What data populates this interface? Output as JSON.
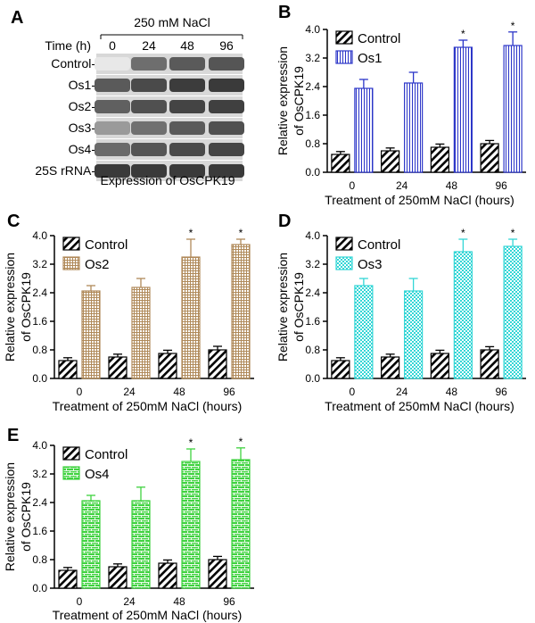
{
  "blot": {
    "letter": "A",
    "treatment": "250 mM NaCl",
    "time_label": "Time (h)",
    "times": [
      "0",
      "24",
      "48",
      "96"
    ],
    "rows": [
      {
        "label": "Control-",
        "shades": [
          "#e8e8e8",
          "#6e6e6e",
          "#5a5a5a",
          "#555555"
        ]
      },
      {
        "label": "Os1-",
        "shades": [
          "#5a5a5a",
          "#4a4a4a",
          "#3c3c3c",
          "#3a3a3a"
        ]
      },
      {
        "label": "Os2-",
        "shades": [
          "#606060",
          "#505050",
          "#444444",
          "#404040"
        ]
      },
      {
        "label": "Os3-",
        "shades": [
          "#9a9a9a",
          "#707070",
          "#5a5a5a",
          "#505050"
        ]
      },
      {
        "label": "Os4-",
        "shades": [
          "#6a6a6a",
          "#555555",
          "#4a4a4a",
          "#454545"
        ]
      },
      {
        "label": "25S rRNA-",
        "shades": [
          "#3a3a3a",
          "#3a3a3a",
          "#3a3a3a",
          "#3a3a3a"
        ]
      }
    ],
    "caption": "Expression of OsCPK19"
  },
  "chart_data": [
    {
      "type": "bar",
      "letter": "B",
      "categories": [
        "0",
        "24",
        "48",
        "96"
      ],
      "series": [
        {
          "name": "Control",
          "values": [
            0.5,
            0.6,
            0.7,
            0.8
          ],
          "errors": [
            0.08,
            0.08,
            0.09,
            0.09
          ],
          "pattern": "diagonal",
          "color": "#000000"
        },
        {
          "name": "Os1",
          "values": [
            2.35,
            2.5,
            3.5,
            3.55
          ],
          "errors": [
            0.25,
            0.3,
            0.2,
            0.38
          ],
          "pattern": "vlines",
          "color": "#2b35c8"
        }
      ],
      "significant": [
        false,
        false,
        true,
        true
      ],
      "star": "*",
      "xlabel": "Treatment of 250mM NaCl (hours)",
      "ylabel": [
        "Relative expression",
        "of OsCPK19"
      ],
      "ylim": [
        0,
        4.0
      ],
      "yticks": [
        "0.0",
        "0.8",
        "1.6",
        "2.4",
        "3.2",
        "4.0"
      ],
      "legend": "top-left"
    },
    {
      "type": "bar",
      "letter": "C",
      "categories": [
        "0",
        "24",
        "48",
        "96"
      ],
      "series": [
        {
          "name": "Control",
          "values": [
            0.5,
            0.6,
            0.7,
            0.8
          ],
          "errors": [
            0.08,
            0.08,
            0.09,
            0.1
          ],
          "pattern": "diagonal",
          "color": "#000000"
        },
        {
          "name": "Os2",
          "values": [
            2.45,
            2.55,
            3.4,
            3.75
          ],
          "errors": [
            0.15,
            0.25,
            0.5,
            0.15
          ],
          "pattern": "grid",
          "color": "#b08a5a"
        }
      ],
      "significant": [
        false,
        false,
        true,
        true
      ],
      "star": "*",
      "xlabel": "Treatment of 250mM NaCl (hours)",
      "ylabel": [
        "Relative expression",
        "of OsCPK19"
      ],
      "ylim": [
        0,
        4.0
      ],
      "yticks": [
        "0.0",
        "0.8",
        "1.6",
        "2.4",
        "3.2",
        "4.0"
      ],
      "legend": "top-left"
    },
    {
      "type": "bar",
      "letter": "D",
      "categories": [
        "0",
        "24",
        "48",
        "96"
      ],
      "series": [
        {
          "name": "Control",
          "values": [
            0.5,
            0.6,
            0.7,
            0.8
          ],
          "errors": [
            0.08,
            0.08,
            0.09,
            0.09
          ],
          "pattern": "diagonal",
          "color": "#000000"
        },
        {
          "name": "Os3",
          "values": [
            2.6,
            2.45,
            3.55,
            3.7
          ],
          "errors": [
            0.2,
            0.35,
            0.35,
            0.2
          ],
          "pattern": "checker",
          "color": "#33d6d6"
        }
      ],
      "significant": [
        false,
        false,
        true,
        true
      ],
      "star": "*",
      "xlabel": "Treatment of 250mM NaCl (hours)",
      "ylabel": [
        "Relative expression",
        "of OsCPK19"
      ],
      "ylim": [
        0,
        4.0
      ],
      "yticks": [
        "0.0",
        "0.8",
        "1.6",
        "2.4",
        "3.2",
        "4.0"
      ],
      "legend": "top-left"
    },
    {
      "type": "bar",
      "letter": "E",
      "categories": [
        "0",
        "24",
        "48",
        "96"
      ],
      "series": [
        {
          "name": "Control",
          "values": [
            0.5,
            0.6,
            0.7,
            0.8
          ],
          "errors": [
            0.08,
            0.08,
            0.09,
            0.09
          ],
          "pattern": "diagonal",
          "color": "#000000"
        },
        {
          "name": "Os4",
          "values": [
            2.45,
            2.45,
            3.55,
            3.6
          ],
          "errors": [
            0.15,
            0.38,
            0.35,
            0.33
          ],
          "pattern": "brick",
          "color": "#3fd23f"
        }
      ],
      "significant": [
        false,
        false,
        true,
        true
      ],
      "star": "*",
      "xlabel": "Treatment of 250mM NaCl (hours)",
      "ylabel": [
        "Relative expression",
        "of OsCPK19"
      ],
      "ylim": [
        0,
        4.0
      ],
      "yticks": [
        "0.0",
        "0.8",
        "1.6",
        "2.4",
        "3.2",
        "4.0"
      ],
      "legend": "top-left"
    }
  ]
}
